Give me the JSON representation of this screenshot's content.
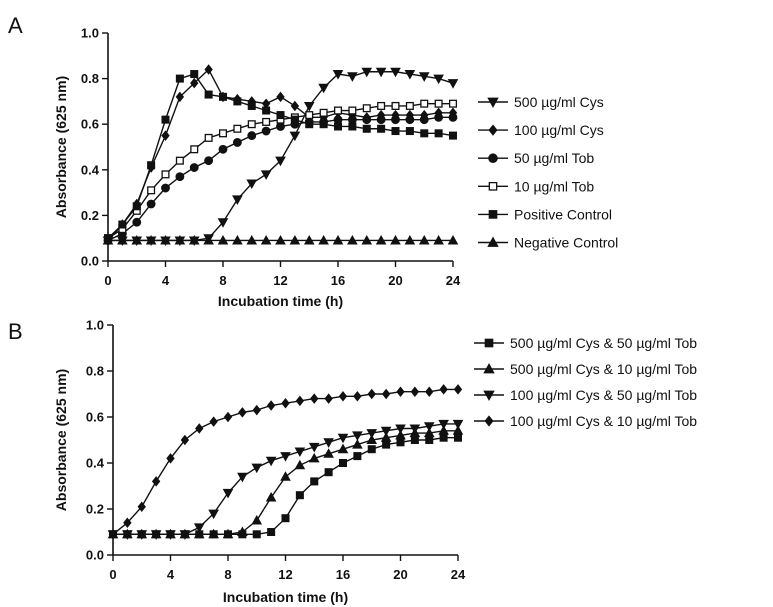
{
  "chart_data": [
    {
      "panel": "A",
      "type": "line",
      "title": "",
      "xlabel": "Incubation time (h)",
      "ylabel": "Absorbance (625 nm)",
      "xlim": [
        0,
        24
      ],
      "ylim": [
        0,
        1.0
      ],
      "x_ticks": [
        "0",
        "4",
        "8",
        "12",
        "16",
        "20",
        "24"
      ],
      "y_ticks": [
        "0.0",
        "0.2",
        "0.4",
        "0.6",
        "0.8",
        "1.0"
      ],
      "grid": false,
      "legend_position": "right",
      "x": [
        0,
        1,
        2,
        3,
        4,
        5,
        6,
        7,
        8,
        9,
        10,
        11,
        12,
        13,
        14,
        15,
        16,
        17,
        18,
        19,
        20,
        21,
        22,
        23,
        24
      ],
      "series": [
        {
          "name": "500 µg/ml Cys",
          "marker": "triangle-down",
          "fill": "filled",
          "values": [
            0.09,
            0.09,
            0.09,
            0.09,
            0.09,
            0.09,
            0.09,
            0.1,
            0.17,
            0.27,
            0.34,
            0.38,
            0.44,
            0.55,
            0.68,
            0.76,
            0.82,
            0.81,
            0.83,
            0.83,
            0.83,
            0.82,
            0.81,
            0.8,
            0.78
          ]
        },
        {
          "name": "100 µg/ml Cys",
          "marker": "diamond",
          "fill": "filled",
          "values": [
            0.09,
            0.16,
            0.25,
            0.41,
            0.55,
            0.72,
            0.78,
            0.84,
            0.72,
            0.71,
            0.7,
            0.69,
            0.72,
            0.68,
            0.63,
            0.63,
            0.65,
            0.64,
            0.63,
            0.64,
            0.64,
            0.64,
            0.64,
            0.65,
            0.65
          ]
        },
        {
          "name": "50 µg/ml Tob",
          "marker": "circle",
          "fill": "filled",
          "values": [
            0.09,
            0.12,
            0.17,
            0.25,
            0.32,
            0.37,
            0.41,
            0.44,
            0.49,
            0.52,
            0.55,
            0.57,
            0.59,
            0.6,
            0.61,
            0.61,
            0.62,
            0.62,
            0.62,
            0.62,
            0.62,
            0.62,
            0.62,
            0.63,
            0.63
          ]
        },
        {
          "name": "10 µg/ml Tob",
          "marker": "square",
          "fill": "open",
          "values": [
            0.1,
            0.14,
            0.22,
            0.31,
            0.38,
            0.44,
            0.49,
            0.54,
            0.56,
            0.58,
            0.6,
            0.61,
            0.62,
            0.63,
            0.64,
            0.65,
            0.66,
            0.66,
            0.67,
            0.68,
            0.68,
            0.68,
            0.69,
            0.69,
            0.69
          ]
        },
        {
          "name": "Positive Control",
          "marker": "square",
          "fill": "filled",
          "values": [
            0.1,
            0.16,
            0.24,
            0.42,
            0.62,
            0.8,
            0.82,
            0.73,
            0.72,
            0.7,
            0.68,
            0.66,
            0.64,
            0.62,
            0.6,
            0.6,
            0.59,
            0.59,
            0.58,
            0.58,
            0.57,
            0.57,
            0.56,
            0.56,
            0.55
          ]
        },
        {
          "name": "Negative Control",
          "marker": "triangle-up",
          "fill": "filled",
          "values": [
            0.09,
            0.09,
            0.09,
            0.09,
            0.09,
            0.09,
            0.09,
            0.09,
            0.09,
            0.09,
            0.09,
            0.09,
            0.09,
            0.09,
            0.09,
            0.09,
            0.09,
            0.09,
            0.09,
            0.09,
            0.09,
            0.09,
            0.09,
            0.09,
            0.09
          ]
        }
      ]
    },
    {
      "panel": "B",
      "type": "line",
      "title": "",
      "xlabel": "Incubation time (h)",
      "ylabel": "Absorbance (625 nm)",
      "xlim": [
        0,
        24
      ],
      "ylim": [
        0,
        1.0
      ],
      "x_ticks": [
        "0",
        "4",
        "8",
        "12",
        "16",
        "20",
        "24"
      ],
      "y_ticks": [
        "0.0",
        "0.2",
        "0.4",
        "0.6",
        "0.8",
        "1.0"
      ],
      "grid": false,
      "legend_position": "right",
      "x": [
        0,
        1,
        2,
        3,
        4,
        5,
        6,
        7,
        8,
        9,
        10,
        11,
        12,
        13,
        14,
        15,
        16,
        17,
        18,
        19,
        20,
        21,
        22,
        23,
        24
      ],
      "series": [
        {
          "name": "500 µg/ml Cys & 50 µg/ml Tob",
          "marker": "square",
          "fill": "filled",
          "values": [
            0.09,
            0.09,
            0.09,
            0.09,
            0.09,
            0.09,
            0.09,
            0.09,
            0.09,
            0.09,
            0.09,
            0.1,
            0.16,
            0.26,
            0.32,
            0.36,
            0.4,
            0.43,
            0.46,
            0.48,
            0.49,
            0.5,
            0.5,
            0.51,
            0.51
          ]
        },
        {
          "name": "500 µg/ml Cys & 10 µg/ml Tob",
          "marker": "triangle-up",
          "fill": "filled",
          "values": [
            0.09,
            0.09,
            0.09,
            0.09,
            0.09,
            0.09,
            0.09,
            0.09,
            0.09,
            0.1,
            0.15,
            0.25,
            0.34,
            0.39,
            0.42,
            0.44,
            0.46,
            0.48,
            0.5,
            0.51,
            0.52,
            0.53,
            0.53,
            0.54,
            0.54
          ]
        },
        {
          "name": "100 µg/ml Cys & 50 µg/ml Tob",
          "marker": "triangle-down",
          "fill": "filled",
          "values": [
            0.09,
            0.09,
            0.09,
            0.09,
            0.09,
            0.09,
            0.12,
            0.18,
            0.27,
            0.34,
            0.38,
            0.41,
            0.43,
            0.45,
            0.47,
            0.49,
            0.51,
            0.52,
            0.53,
            0.54,
            0.55,
            0.55,
            0.56,
            0.57,
            0.57
          ]
        },
        {
          "name": "100 µg/ml Cys & 10 µg/ml Tob",
          "marker": "diamond",
          "fill": "filled",
          "values": [
            0.09,
            0.14,
            0.21,
            0.32,
            0.42,
            0.5,
            0.55,
            0.58,
            0.6,
            0.62,
            0.63,
            0.65,
            0.66,
            0.67,
            0.68,
            0.68,
            0.69,
            0.69,
            0.7,
            0.7,
            0.71,
            0.71,
            0.71,
            0.72,
            0.72
          ]
        }
      ]
    }
  ]
}
